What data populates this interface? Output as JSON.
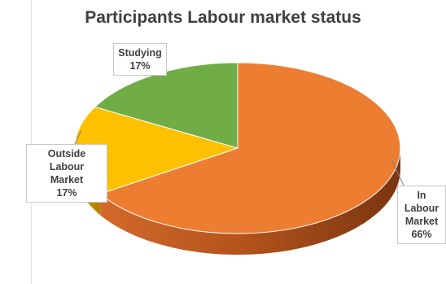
{
  "chart_data": {
    "type": "pie",
    "title": "Participants Labour market status",
    "slices": [
      {
        "label_lines": [
          "In Labour",
          "Market"
        ],
        "value": 66,
        "value_label": "66%",
        "color": "#ED7D31"
      },
      {
        "label_lines": [
          "Outside Labour",
          "Market"
        ],
        "value": 17,
        "value_label": "17%",
        "color": "#FFC000"
      },
      {
        "label_lines": [
          "Studying"
        ],
        "value": 17,
        "value_label": "17%",
        "color": "#70AD47"
      }
    ],
    "style": "3d-exploded-none",
    "legend": "none",
    "data_labels": "category-and-percent"
  }
}
